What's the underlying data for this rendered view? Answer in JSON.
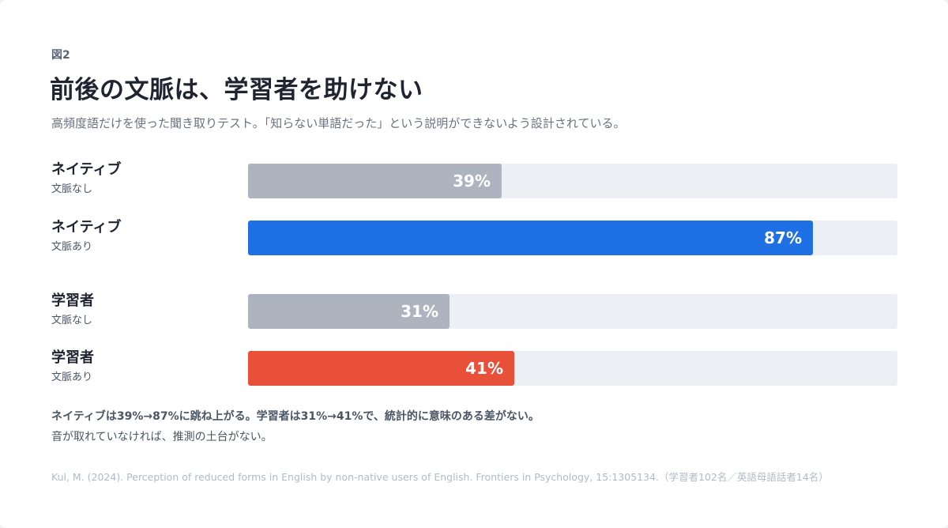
{
  "figure_label": "図2",
  "title": "前後の文脈は、学習者を助けない",
  "subtitle": "高頻度語だけを使った聞き取りテスト。「知らない単語だった」という説明ができないよう設計されている。",
  "colors": {
    "track": "#eceff4",
    "no_context": "#adb4bf",
    "native_context": "#1f6fe5",
    "learner_context": "#e8503a"
  },
  "chart_data": {
    "type": "bar",
    "orientation": "horizontal",
    "unit": "%",
    "xlim": [
      0,
      100
    ],
    "rows": [
      {
        "name": "ネイティブ",
        "condition": "文脈なし",
        "value": 39,
        "label": "39%",
        "color": "#adb4bf"
      },
      {
        "name": "ネイティブ",
        "condition": "文脈あり",
        "value": 87,
        "label": "87%",
        "color": "#1f6fe5"
      },
      {
        "name": "学習者",
        "condition": "文脈なし",
        "value": 31,
        "label": "31%",
        "color": "#adb4bf"
      },
      {
        "name": "学習者",
        "condition": "文脈あり",
        "value": 41,
        "label": "41%",
        "color": "#e8503a"
      }
    ]
  },
  "note_bold": "ネイティブは39%→87%に跳ね上がる。学習者は31%→41%で、統計的に意味のある差がない。",
  "note": "音が取れていなければ、推測の土台がない。",
  "source": "Kul, M. (2024). Perception of reduced forms in English by non-native users of English. Frontiers in Psychology, 15:1305134.（学習者102名／英語母語話者14名）"
}
